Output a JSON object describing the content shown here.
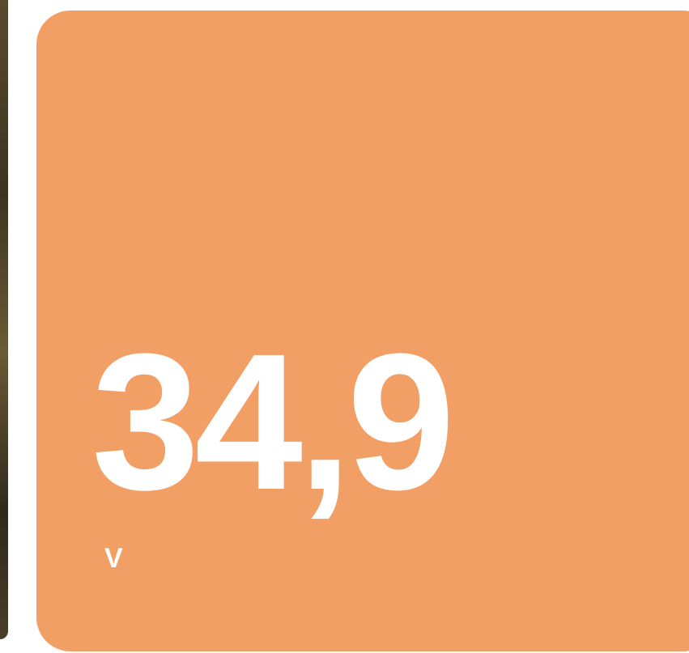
{
  "card": {
    "value": "34,9",
    "unit": "V"
  }
}
